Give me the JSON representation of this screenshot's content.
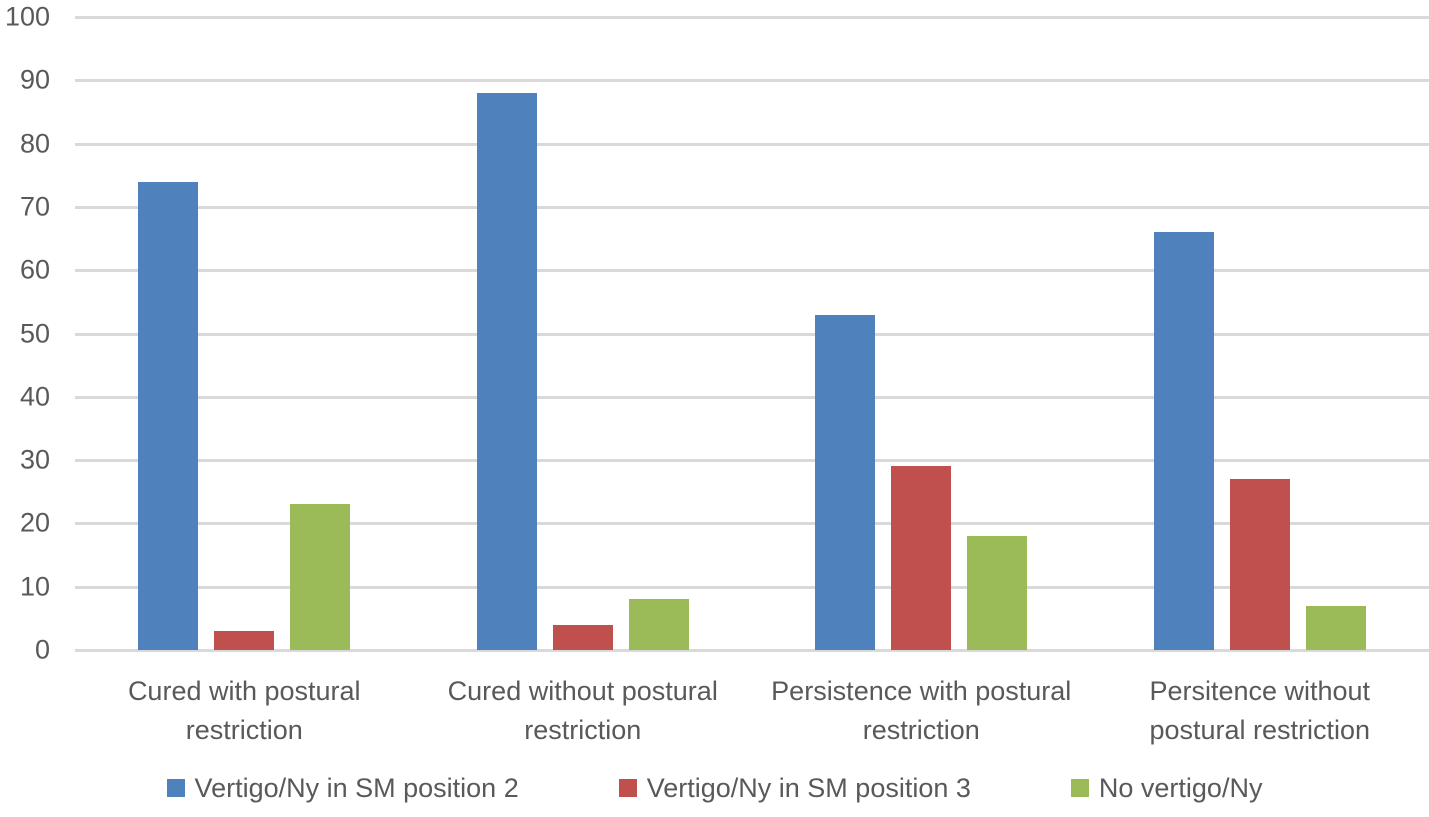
{
  "chart_data": {
    "type": "bar",
    "title": "",
    "xlabel": "",
    "ylabel": "",
    "categories": [
      "Cured with postural\nrestriction",
      "Cured without postural\nrestriction",
      "Persistence with postural\nrestriction",
      "Persitence without\npostural restriction"
    ],
    "series": [
      {
        "name": "Vertigo/Ny in SM position 2",
        "color": "#4F81BD",
        "values": [
          74,
          88,
          53,
          66
        ]
      },
      {
        "name": "Vertigo/Ny in SM position 3",
        "color": "#C0504D",
        "values": [
          3,
          4,
          29,
          27
        ]
      },
      {
        "name": "No vertigo/Ny",
        "color": "#9BBB59",
        "values": [
          23,
          8,
          18,
          7
        ]
      }
    ],
    "ylim": [
      0,
      100
    ],
    "ytick_interval": 10,
    "ytick_labels": [
      "0",
      "10",
      "20",
      "30",
      "40",
      "50",
      "60",
      "70",
      "80",
      "90",
      "100"
    ],
    "grid": true,
    "gridline_color": "#D9D9D9",
    "axis_text_color": "#595959",
    "legend_position": "bottom",
    "background_color": "#FFFFFF"
  }
}
